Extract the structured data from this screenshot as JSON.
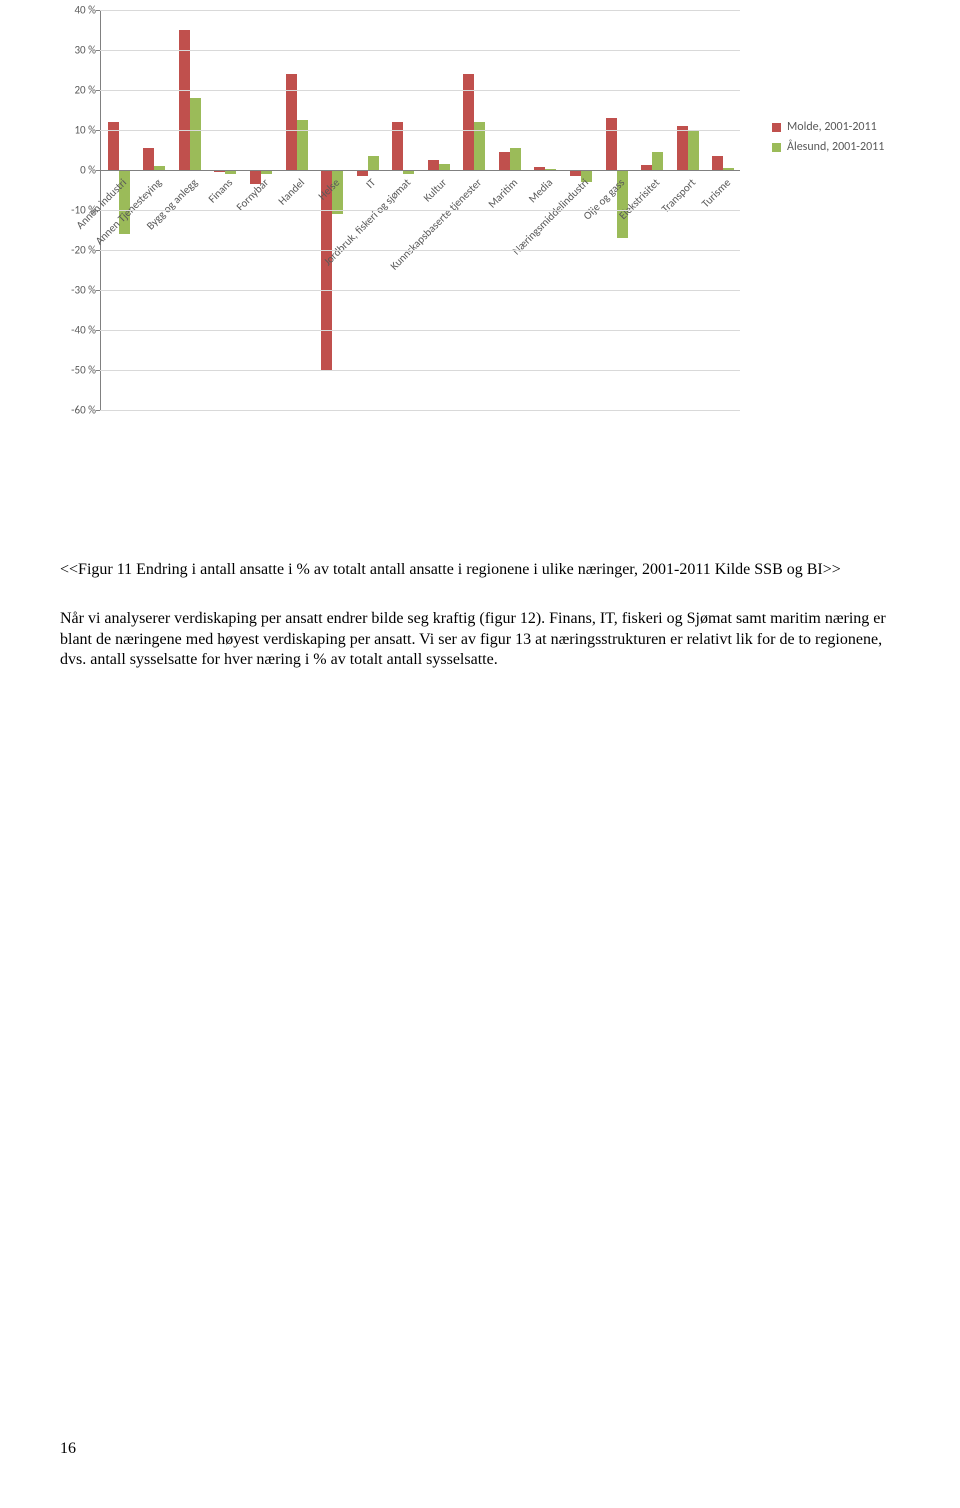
{
  "chart": {
    "type": "bar",
    "y_min": -60,
    "y_max": 40,
    "y_tick_step": 10,
    "y_tick_suffix": " %",
    "zero_line_color": "#808080",
    "grid_color": "#d9d9d9",
    "axis_font_color": "#595959",
    "axis_font_size": 11,
    "background_color": "#ffffff",
    "series": [
      {
        "label": "Molde, 2001-2011",
        "color": "#c0504d"
      },
      {
        "label": "Ålesund, 2001-2011",
        "color": "#9bbb59"
      }
    ],
    "categories": [
      "Annen industri",
      "Annen Tjenesteying",
      "Bygg og anlegg",
      "Finans",
      "Fornybar",
      "Handel",
      "Helse",
      "IT",
      "Jordbruk, fiskeri og sjømat",
      "Kultur",
      "Kunnskapsbaserte tjenester",
      "Maritim",
      "Media",
      "Næringsmiddelindustri",
      "Olje og gass",
      "Elekstrisitet",
      "Transport",
      "Turisme"
    ],
    "values_a": [
      12,
      5.5,
      35,
      -0.5,
      -3.5,
      24,
      -50,
      -1.5,
      12,
      2.5,
      24,
      4.5,
      0.8,
      -1.5,
      13,
      1.2,
      11,
      3.5
    ],
    "values_b": [
      -16,
      1,
      18,
      -1,
      -1,
      12.5,
      -11,
      3.5,
      -1,
      1.5,
      12,
      5.5,
      0.3,
      -3,
      -17,
      4.5,
      10,
      0.5
    ]
  },
  "caption": "<<Figur 11 Endring i antall ansatte i % av totalt antall ansatte i regionene i ulike næringer, 2001-2011 Kilde SSB og BI>>",
  "body": "Når vi analyserer verdiskaping per ansatt endrer bilde seg kraftig (figur 12). Finans, IT, fiskeri og Sjømat samt maritim næring er blant de næringene med høyest verdiskaping per ansatt. Vi ser av figur 13 at næringsstrukturen er relativt lik for de to regionene, dvs. antall sysselsatte for hver næring i % av totalt antall sysselsatte.",
  "page_number": "16"
}
